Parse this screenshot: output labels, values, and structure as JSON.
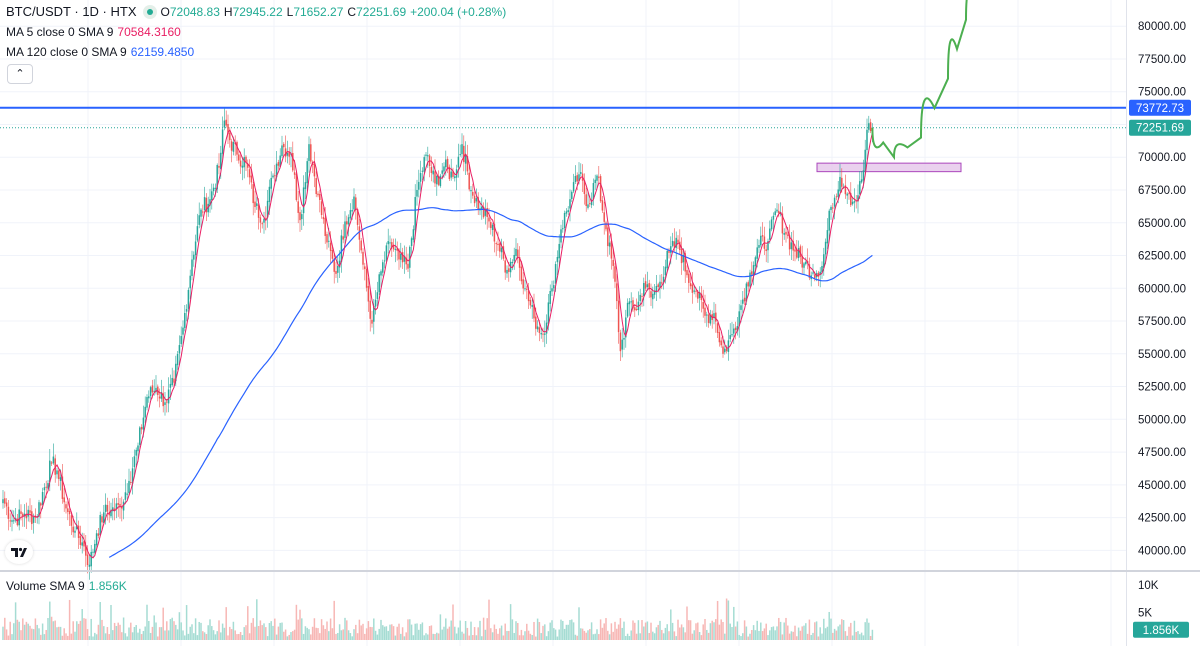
{
  "header": {
    "symbol": "BTC/USDT · 1D · HTX",
    "open_label": "O",
    "open": "72048.83",
    "high_label": "H",
    "high": "72945.22",
    "low_label": "L",
    "low": "71652.27",
    "close_label": "C",
    "close": "72251.69",
    "change": "+200.04 (+0.28%)"
  },
  "indicators": {
    "ma5": {
      "label": "MA 5 close 0 SMA 9",
      "value": "70584.3160",
      "color": "#e91e63"
    },
    "ma120": {
      "label": "MA 120 close 0 SMA 9",
      "value": "62159.4850",
      "color": "#2962ff"
    },
    "volume": {
      "label": "Volume SMA 9",
      "value": "1.856K"
    }
  },
  "price_axis": {
    "ticks": [
      "80000.00",
      "77500.00",
      "75000.00",
      "72500.00",
      "70000.00",
      "67500.00",
      "65000.00",
      "62500.00",
      "60000.00",
      "57500.00",
      "55000.00",
      "52500.00",
      "50000.00",
      "47500.00",
      "45000.00",
      "42500.00",
      "40000.00"
    ],
    "horizontal_line_label": "73772.73",
    "last_price_label": "72251.69"
  },
  "volume_axis": {
    "ticks": [
      "10K",
      "5K"
    ],
    "last_label": "1.856K"
  },
  "colors": {
    "up": "#26a69a",
    "down": "#ef5350",
    "horizontal_line": "#2962ff",
    "projection": "#4caf50",
    "zone_fill": "#e1bee7",
    "zone_stroke": "#ab47bc",
    "ma5": "#e91e63",
    "ma120": "#2962ff"
  },
  "chart_data": {
    "type": "candlestick",
    "timeframe": "1D",
    "y_range": [
      38500,
      82000
    ],
    "horizontal_line": 73772.73,
    "last_price": 72251.69,
    "zone": [
      68900,
      69550
    ],
    "anchors": [
      [
        0,
        43900
      ],
      [
        5,
        42300
      ],
      [
        12,
        42800
      ],
      [
        18,
        42500
      ],
      [
        27,
        46700
      ],
      [
        30,
        46100
      ],
      [
        35,
        43200
      ],
      [
        40,
        41500
      ],
      [
        45,
        40300
      ],
      [
        48,
        38900
      ],
      [
        52,
        41300
      ],
      [
        56,
        42900
      ],
      [
        60,
        43100
      ],
      [
        65,
        43300
      ],
      [
        70,
        45300
      ],
      [
        75,
        48000
      ],
      [
        80,
        51700
      ],
      [
        85,
        52400
      ],
      [
        90,
        51300
      ],
      [
        95,
        52800
      ],
      [
        100,
        57000
      ],
      [
        105,
        62200
      ],
      [
        110,
        66000
      ],
      [
        115,
        66800
      ],
      [
        120,
        69200
      ],
      [
        123,
        72800
      ],
      [
        126,
        71300
      ],
      [
        130,
        70200
      ],
      [
        135,
        69600
      ],
      [
        140,
        66200
      ],
      [
        145,
        65300
      ],
      [
        150,
        68600
      ],
      [
        155,
        70900
      ],
      [
        160,
        70300
      ],
      [
        165,
        65200
      ],
      [
        170,
        71000
      ],
      [
        175,
        67100
      ],
      [
        180,
        63500
      ],
      [
        185,
        61100
      ],
      [
        190,
        65100
      ],
      [
        195,
        67000
      ],
      [
        200,
        61800
      ],
      [
        205,
        57300
      ],
      [
        210,
        61300
      ],
      [
        215,
        63500
      ],
      [
        220,
        62200
      ],
      [
        225,
        61500
      ],
      [
        230,
        67500
      ],
      [
        235,
        70200
      ],
      [
        240,
        68000
      ],
      [
        245,
        69300
      ],
      [
        250,
        68500
      ],
      [
        255,
        71000
      ],
      [
        260,
        67500
      ],
      [
        265,
        66100
      ],
      [
        270,
        65100
      ],
      [
        275,
        63300
      ],
      [
        280,
        61400
      ],
      [
        285,
        63000
      ],
      [
        290,
        60000
      ],
      [
        295,
        57700
      ],
      [
        300,
        56500
      ],
      [
        305,
        60000
      ],
      [
        310,
        64500
      ],
      [
        315,
        66800
      ],
      [
        320,
        68700
      ],
      [
        325,
        66400
      ],
      [
        330,
        68600
      ],
      [
        335,
        64500
      ],
      [
        340,
        60500
      ],
      [
        343,
        55200
      ],
      [
        348,
        59000
      ],
      [
        352,
        58400
      ],
      [
        356,
        60400
      ],
      [
        360,
        59300
      ],
      [
        365,
        60500
      ],
      [
        370,
        62700
      ],
      [
        375,
        63500
      ],
      [
        380,
        61000
      ],
      [
        385,
        59800
      ],
      [
        390,
        57900
      ],
      [
        395,
        58100
      ],
      [
        400,
        55000
      ],
      [
        405,
        56500
      ],
      [
        410,
        58700
      ],
      [
        415,
        61200
      ],
      [
        420,
        63300
      ],
      [
        425,
        63600
      ],
      [
        430,
        66000
      ],
      [
        435,
        64100
      ],
      [
        440,
        62800
      ],
      [
        445,
        61900
      ],
      [
        450,
        61200
      ],
      [
        455,
        61700
      ],
      [
        460,
        66200
      ],
      [
        465,
        68500
      ],
      [
        470,
        67200
      ],
      [
        472,
        66600
      ],
      [
        475,
        67100
      ],
      [
        478,
        69000
      ],
      [
        480,
        72100
      ],
      [
        482,
        72000
      ],
      [
        483,
        72251.69
      ]
    ],
    "projection": [
      [
        483,
        72251.69
      ],
      [
        495,
        70000
      ],
      [
        510,
        71500
      ],
      [
        525,
        76000
      ],
      [
        535,
        80500
      ],
      [
        545,
        84000
      ]
    ],
    "volume": {
      "max": 12000,
      "last": 1856,
      "ticks": [
        10000,
        5000
      ]
    }
  }
}
